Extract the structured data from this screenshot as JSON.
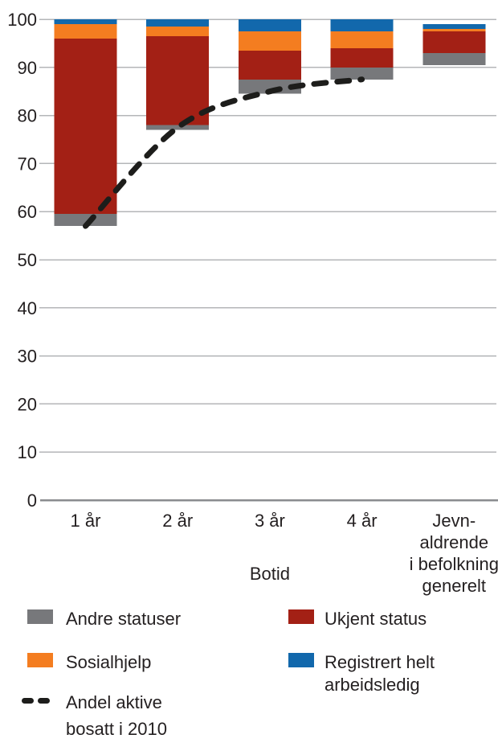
{
  "chart_data": {
    "type": "bar",
    "subtype": "stacked-bars-with-dashed-line",
    "title": "",
    "xlabel": "Botid",
    "ylabel": "",
    "ylim": [
      0,
      100
    ],
    "ytick_step": 10,
    "grid": true,
    "categories": [
      "1 år",
      "2 år",
      "3 år",
      "4 år",
      "Jevn-\naldrende\ni befolkning\ngenerelt"
    ],
    "series": [
      {
        "name": "Andre statuser",
        "color": "#77787B"
      },
      {
        "name": "Ukjent status",
        "color": "#A32015"
      },
      {
        "name": "Sosialhjelp",
        "color": "#F47D20"
      },
      {
        "name": "Registrert helt arbeidsledig",
        "color": "#1268AC"
      }
    ],
    "bars": [
      {
        "category": "1 år",
        "base": 57,
        "segments": [
          2.5,
          36.5,
          3,
          1
        ],
        "top": 100
      },
      {
        "category": "2 år",
        "base": 77,
        "segments": [
          1,
          18.5,
          2,
          1.5
        ],
        "top": 100
      },
      {
        "category": "3 år",
        "base": 84.5,
        "segments": [
          3,
          6,
          4,
          2.5
        ],
        "top": 100
      },
      {
        "category": "4 år",
        "base": 87.5,
        "segments": [
          2.5,
          4,
          3.5,
          2.5
        ],
        "top": 100
      },
      {
        "category": "Jevn-aldrende i befolkning generelt",
        "base": 90.5,
        "segments": [
          2.5,
          4.5,
          0.5,
          1
        ],
        "top": 99
      }
    ],
    "line_series": {
      "name": "Andel aktive bosatt i 2010",
      "style": "dashed",
      "color": "#1D1D1B",
      "categories_covered": [
        "1 år",
        "2 år",
        "3 år",
        "4 år"
      ],
      "values": [
        57,
        77.5,
        85,
        87.5
      ]
    },
    "colors": {
      "gridline": "#B4B6B8",
      "axis_line": "#8A8C8F",
      "text": "#231F20"
    }
  },
  "legend": {
    "items": [
      {
        "label": "Andre statuser",
        "swatch": "gray-swatch"
      },
      {
        "label": "Ukjent status",
        "swatch": "darkred-swatch"
      },
      {
        "label": "Sosialhjelp",
        "swatch": "orange-swatch"
      },
      {
        "label": "Registrert helt\narbeidsledig",
        "swatch": "blue-swatch"
      },
      {
        "label": "Andel aktive\nbosatt i 2010",
        "swatch": "dashed-line-icon"
      }
    ]
  }
}
